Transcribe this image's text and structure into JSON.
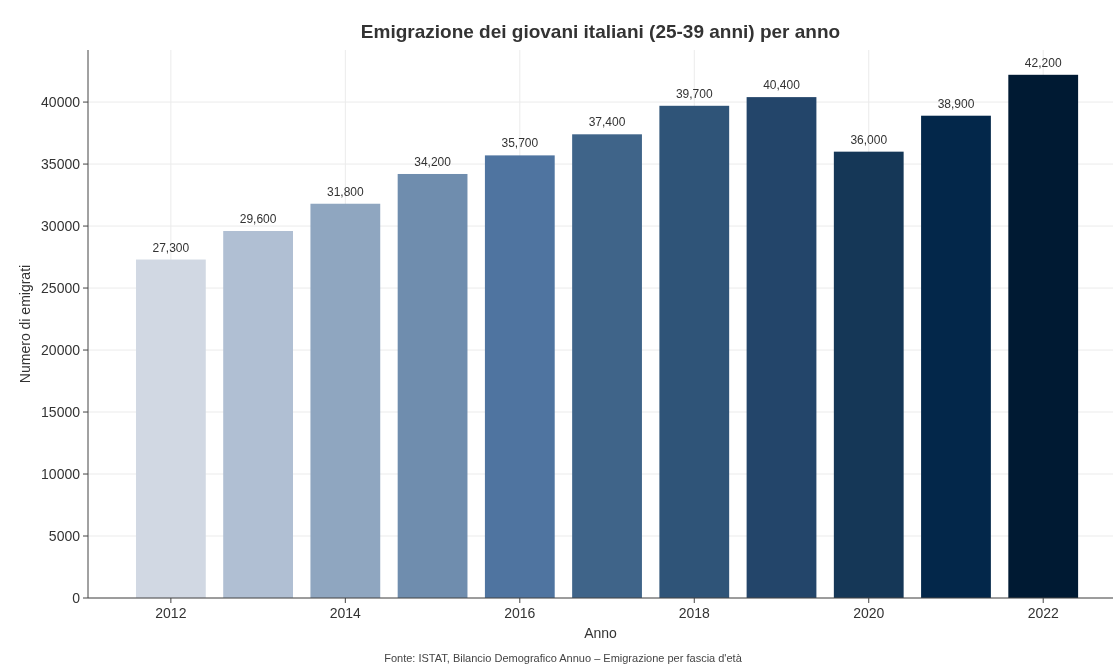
{
  "chart_data": {
    "type": "bar",
    "title": "Emigrazione dei giovani italiani (25-39 anni) per anno",
    "xlabel": "Anno",
    "ylabel": "Numero di emigrati",
    "x": [
      2012,
      2013,
      2014,
      2015,
      2016,
      2017,
      2018,
      2019,
      2020,
      2021,
      2022
    ],
    "values": [
      27300,
      29600,
      31800,
      34200,
      35700,
      37400,
      39700,
      40400,
      36000,
      38900,
      42200
    ],
    "value_labels": [
      "27,300",
      "29,600",
      "31,800",
      "34,200",
      "35,700",
      "37,400",
      "39,700",
      "40,400",
      "36,000",
      "38,900",
      "42,200"
    ],
    "colors": [
      "#d1d8e3",
      "#b0bfd3",
      "#8fa6c0",
      "#6f8dae",
      "#4f74a0",
      "#3f6489",
      "#2f5478",
      "#23456a",
      "#153757",
      "#03274a",
      "#001a33"
    ],
    "xlim": [
      2011.05,
      2022.8
    ],
    "xticks": [
      2012,
      2014,
      2016,
      2018,
      2020,
      2022
    ],
    "ylim": [
      0,
      44200
    ],
    "yticks": [
      0,
      5000,
      10000,
      15000,
      20000,
      25000,
      30000,
      35000,
      40000
    ],
    "grid": true,
    "annotations": [
      "Fonte: ISTAT, Bilancio Demografico Annuo – Emigrazione per fascia d'età"
    ]
  }
}
